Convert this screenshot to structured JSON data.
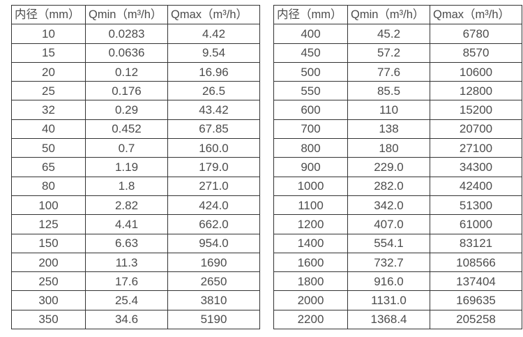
{
  "colors": {
    "background": "#ffffff",
    "border": "#333333",
    "text": "#4c4c4c"
  },
  "tables": [
    {
      "name": "flow-range-table-small-diameters",
      "headers": [
        "内径（mm）",
        "Qmin（m³/h）",
        "Qmax（m³/h）"
      ],
      "rows": [
        [
          "10",
          "0.0283",
          "4.42"
        ],
        [
          "15",
          "0.0636",
          "9.54"
        ],
        [
          "20",
          "0.12",
          "16.96"
        ],
        [
          "25",
          "0.176",
          "26.5"
        ],
        [
          "32",
          "0.29",
          "43.42"
        ],
        [
          "40",
          "0.452",
          "67.85"
        ],
        [
          "50",
          "0.7",
          "160.0"
        ],
        [
          "65",
          "1.19",
          "179.0"
        ],
        [
          "80",
          "1.8",
          "271.0"
        ],
        [
          "100",
          "2.82",
          "424.0"
        ],
        [
          "125",
          "4.41",
          "662.0"
        ],
        [
          "150",
          "6.63",
          "954.0"
        ],
        [
          "200",
          "11.3",
          "1690"
        ],
        [
          "250",
          "17.6",
          "2650"
        ],
        [
          "300",
          "25.4",
          "3810"
        ],
        [
          "350",
          "34.6",
          "5190"
        ]
      ]
    },
    {
      "name": "flow-range-table-large-diameters",
      "headers": [
        "内径（mm）",
        "Qmin（m³/h）",
        "Qmax（m³/h）"
      ],
      "rows": [
        [
          "400",
          "45.2",
          "6780"
        ],
        [
          "450",
          "57.2",
          "8570"
        ],
        [
          "500",
          "77.6",
          "10600"
        ],
        [
          "550",
          "85.5",
          "12800"
        ],
        [
          "600",
          "110",
          "15200"
        ],
        [
          "700",
          "138",
          "20700"
        ],
        [
          "800",
          "180",
          "27100"
        ],
        [
          "900",
          "229.0",
          "34300"
        ],
        [
          "1000",
          "282.0",
          "42400"
        ],
        [
          "1100",
          "342.0",
          "51300"
        ],
        [
          "1200",
          "407.0",
          "61000"
        ],
        [
          "1400",
          "554.1",
          "83121"
        ],
        [
          "1600",
          "732.7",
          "108566"
        ],
        [
          "1800",
          "916.0",
          "137404"
        ],
        [
          "2000",
          "1131.0",
          "169635"
        ],
        [
          "2200",
          "1368.4",
          "205258"
        ]
      ]
    }
  ]
}
